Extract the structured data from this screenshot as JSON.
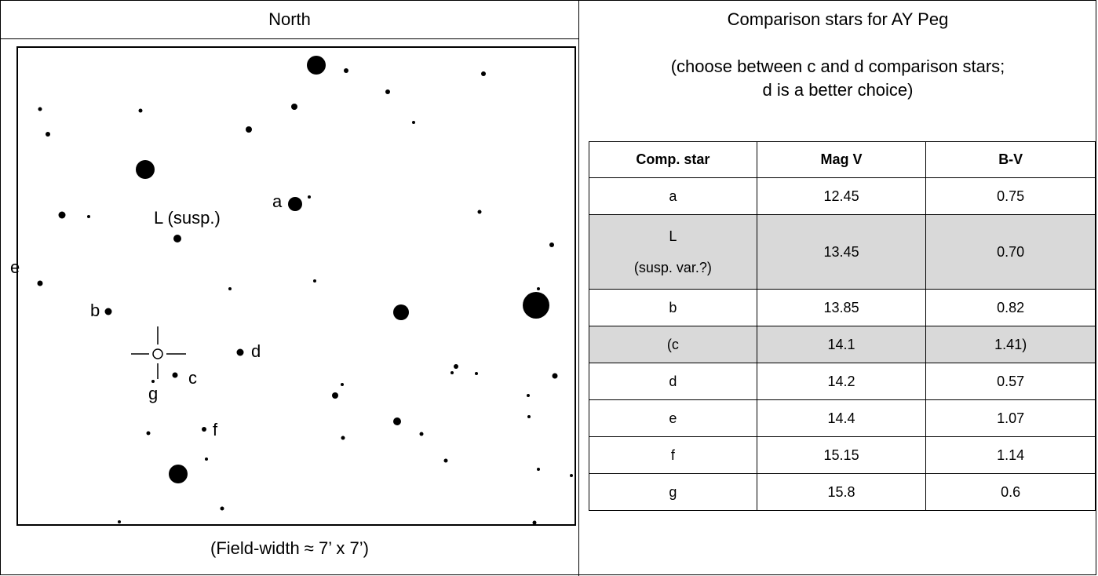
{
  "left_panel": {
    "north_label": "North",
    "field_width_caption": "(Field-width ≈ 7’ x 7’)",
    "labels": {
      "a": "a",
      "L": "L (susp.)",
      "e": "e",
      "b": "b",
      "d": "d",
      "c": "c",
      "g": "g",
      "f": "f"
    }
  },
  "right_panel": {
    "title": "Comparison stars for AY Peg",
    "note_line1": "(choose between c and d comparison stars;",
    "note_line2": "d is a better choice)",
    "table": {
      "headers": [
        "Comp. star",
        "Mag V",
        "B-V"
      ],
      "rows": [
        {
          "star": "a",
          "mag_v": "12.45",
          "b_v": "0.75"
        },
        {
          "star_line1": "L",
          "star_line2": "(susp. var.?)",
          "mag_v": "13.45",
          "b_v": "0.70"
        },
        {
          "star": "b",
          "mag_v": "13.85",
          "b_v": "0.82"
        },
        {
          "star": "(c",
          "mag_v": "14.1",
          "b_v": "1.41)"
        },
        {
          "star": "d",
          "mag_v": "14.2",
          "b_v": "0.57"
        },
        {
          "star": "e",
          "mag_v": "14.4",
          "b_v": "1.07"
        },
        {
          "star": "f",
          "mag_v": "15.15",
          "b_v": "1.14"
        },
        {
          "star": "g",
          "mag_v": "15.8",
          "b_v": "0.6"
        }
      ]
    }
  }
}
